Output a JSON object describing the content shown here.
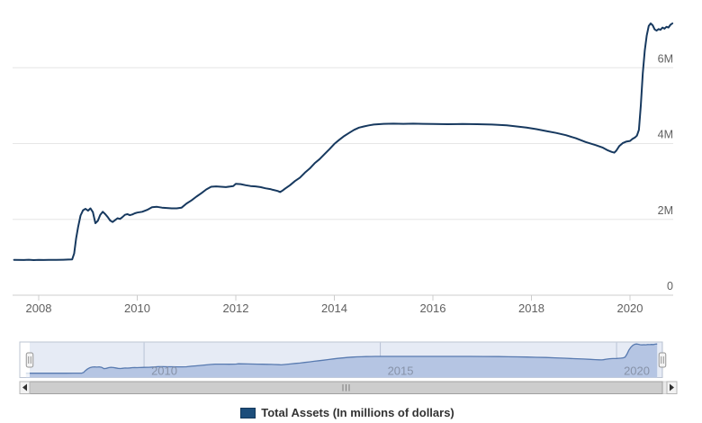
{
  "page": {
    "background": "#ffffff"
  },
  "legend": {
    "label": "Total Assets (In millions of dollars)",
    "swatch_color": "#1d4e7b",
    "swatch_border": "#163a5c",
    "text_color": "#333333"
  },
  "colors": {
    "series_line": "#17395f",
    "gridline": "#e6e6e6",
    "axis_line": "#cccccc",
    "axis_label": "#606060",
    "nav_outline": "#bcc4d2",
    "nav_gridline": "#c9cfdb",
    "nav_label": "#8e96a4",
    "nav_line": "#5679ad",
    "nav_area": "#c5d2ea",
    "nav_mask": "rgba(102,133,194,0.16)",
    "scrollbar_track": "#e9e9e9",
    "scrollbar_thumb": "#cdcdcd",
    "scrollbar_border": "#a0a0a0",
    "scrollbar_button": "#f2f2f2",
    "arrow_color": "#303030"
  },
  "navigator": {
    "labels": [
      {
        "value": 2010,
        "label": "2010"
      },
      {
        "value": 2015,
        "label": "2015"
      },
      {
        "value": 2020,
        "label": "2020"
      }
    ],
    "range": [
      2007.37,
      2020.97
    ],
    "selected": [
      2007.5,
      2020.9
    ]
  },
  "scrollbar": {
    "left_arrow": "left",
    "right_arrow": "right",
    "grip": "|||"
  },
  "chart_data": {
    "type": "line",
    "title": "",
    "xlabel": "",
    "ylabel": "",
    "units": "millions of dollars",
    "grid": true,
    "y_axis_position": "right",
    "x_range": [
      2007.45,
      2020.9
    ],
    "ylim": [
      0,
      7800000
    ],
    "x_ticks": [
      2008,
      2010,
      2012,
      2014,
      2016,
      2018,
      2020
    ],
    "y_ticks": [
      {
        "value": 0,
        "label": "0"
      },
      {
        "value": 2000000,
        "label": "2M"
      },
      {
        "value": 4000000,
        "label": "4M"
      },
      {
        "value": 6000000,
        "label": "6M"
      }
    ],
    "legend_position": "bottom-center",
    "series": [
      {
        "name": "Total Assets (In millions of dollars)",
        "color": "#17395f",
        "points": [
          [
            2007.5,
            930000
          ],
          [
            2007.7,
            928000
          ],
          [
            2007.8,
            935000
          ],
          [
            2007.9,
            925000
          ],
          [
            2008.0,
            930000
          ],
          [
            2008.1,
            928000
          ],
          [
            2008.2,
            932000
          ],
          [
            2008.35,
            930000
          ],
          [
            2008.5,
            935000
          ],
          [
            2008.6,
            940000
          ],
          [
            2008.68,
            945000
          ],
          [
            2008.72,
            1100000
          ],
          [
            2008.76,
            1500000
          ],
          [
            2008.8,
            1800000
          ],
          [
            2008.85,
            2100000
          ],
          [
            2008.9,
            2240000
          ],
          [
            2008.95,
            2280000
          ],
          [
            2009.0,
            2230000
          ],
          [
            2009.05,
            2290000
          ],
          [
            2009.1,
            2190000
          ],
          [
            2009.15,
            1900000
          ],
          [
            2009.2,
            1960000
          ],
          [
            2009.25,
            2120000
          ],
          [
            2009.3,
            2200000
          ],
          [
            2009.35,
            2140000
          ],
          [
            2009.4,
            2060000
          ],
          [
            2009.45,
            1970000
          ],
          [
            2009.5,
            1930000
          ],
          [
            2009.55,
            1980000
          ],
          [
            2009.6,
            2030000
          ],
          [
            2009.65,
            2010000
          ],
          [
            2009.7,
            2060000
          ],
          [
            2009.75,
            2120000
          ],
          [
            2009.8,
            2140000
          ],
          [
            2009.85,
            2110000
          ],
          [
            2009.9,
            2130000
          ],
          [
            2009.95,
            2160000
          ],
          [
            2010.0,
            2180000
          ],
          [
            2010.1,
            2200000
          ],
          [
            2010.2,
            2250000
          ],
          [
            2010.3,
            2320000
          ],
          [
            2010.4,
            2330000
          ],
          [
            2010.5,
            2310000
          ],
          [
            2010.6,
            2300000
          ],
          [
            2010.7,
            2290000
          ],
          [
            2010.8,
            2290000
          ],
          [
            2010.9,
            2310000
          ],
          [
            2011.0,
            2420000
          ],
          [
            2011.1,
            2500000
          ],
          [
            2011.2,
            2600000
          ],
          [
            2011.3,
            2690000
          ],
          [
            2011.4,
            2790000
          ],
          [
            2011.5,
            2860000
          ],
          [
            2011.6,
            2870000
          ],
          [
            2011.7,
            2860000
          ],
          [
            2011.8,
            2850000
          ],
          [
            2011.9,
            2870000
          ],
          [
            2011.95,
            2880000
          ],
          [
            2012.0,
            2940000
          ],
          [
            2012.1,
            2930000
          ],
          [
            2012.2,
            2900000
          ],
          [
            2012.3,
            2880000
          ],
          [
            2012.4,
            2870000
          ],
          [
            2012.5,
            2850000
          ],
          [
            2012.6,
            2820000
          ],
          [
            2012.7,
            2800000
          ],
          [
            2012.75,
            2780000
          ],
          [
            2012.85,
            2750000
          ],
          [
            2012.9,
            2720000
          ],
          [
            2012.95,
            2760000
          ],
          [
            2013.0,
            2810000
          ],
          [
            2013.1,
            2900000
          ],
          [
            2013.2,
            3010000
          ],
          [
            2013.3,
            3100000
          ],
          [
            2013.4,
            3230000
          ],
          [
            2013.5,
            3340000
          ],
          [
            2013.6,
            3480000
          ],
          [
            2013.7,
            3590000
          ],
          [
            2013.8,
            3720000
          ],
          [
            2013.9,
            3850000
          ],
          [
            2014.0,
            3990000
          ],
          [
            2014.1,
            4100000
          ],
          [
            2014.2,
            4200000
          ],
          [
            2014.3,
            4280000
          ],
          [
            2014.4,
            4360000
          ],
          [
            2014.5,
            4420000
          ],
          [
            2014.6,
            4450000
          ],
          [
            2014.7,
            4480000
          ],
          [
            2014.8,
            4500000
          ],
          [
            2014.9,
            4510000
          ],
          [
            2015.0,
            4520000
          ],
          [
            2015.2,
            4525000
          ],
          [
            2015.4,
            4520000
          ],
          [
            2015.6,
            4525000
          ],
          [
            2015.8,
            4520000
          ],
          [
            2016.0,
            4515000
          ],
          [
            2016.3,
            4510000
          ],
          [
            2016.6,
            4515000
          ],
          [
            2016.9,
            4510000
          ],
          [
            2017.2,
            4500000
          ],
          [
            2017.5,
            4480000
          ],
          [
            2017.7,
            4450000
          ],
          [
            2017.9,
            4420000
          ],
          [
            2018.1,
            4380000
          ],
          [
            2018.3,
            4330000
          ],
          [
            2018.5,
            4280000
          ],
          [
            2018.7,
            4220000
          ],
          [
            2018.9,
            4140000
          ],
          [
            2019.1,
            4040000
          ],
          [
            2019.3,
            3960000
          ],
          [
            2019.45,
            3890000
          ],
          [
            2019.55,
            3820000
          ],
          [
            2019.63,
            3780000
          ],
          [
            2019.68,
            3760000
          ],
          [
            2019.72,
            3810000
          ],
          [
            2019.78,
            3930000
          ],
          [
            2019.85,
            4010000
          ],
          [
            2019.92,
            4050000
          ],
          [
            2020.0,
            4070000
          ],
          [
            2020.05,
            4120000
          ],
          [
            2020.1,
            4160000
          ],
          [
            2020.14,
            4210000
          ],
          [
            2020.18,
            4360000
          ],
          [
            2020.22,
            5000000
          ],
          [
            2020.26,
            5850000
          ],
          [
            2020.3,
            6450000
          ],
          [
            2020.34,
            6850000
          ],
          [
            2020.38,
            7100000
          ],
          [
            2020.42,
            7170000
          ],
          [
            2020.46,
            7120000
          ],
          [
            2020.5,
            7010000
          ],
          [
            2020.54,
            6980000
          ],
          [
            2020.58,
            7020000
          ],
          [
            2020.62,
            7000000
          ],
          [
            2020.66,
            7060000
          ],
          [
            2020.7,
            7030000
          ],
          [
            2020.74,
            7080000
          ],
          [
            2020.78,
            7060000
          ],
          [
            2020.82,
            7130000
          ],
          [
            2020.86,
            7170000
          ]
        ]
      }
    ]
  }
}
